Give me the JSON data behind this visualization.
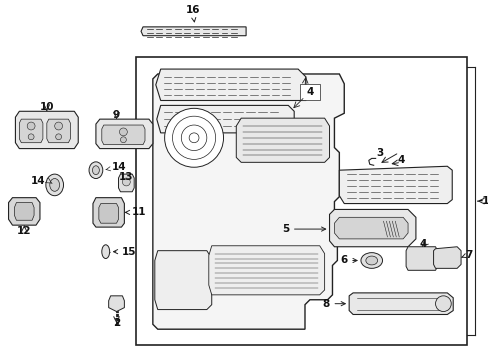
{
  "background_color": "#ffffff",
  "line_color": "#222222",
  "text_color": "#111111",
  "fig_width": 4.89,
  "fig_height": 3.6,
  "dpi": 100
}
